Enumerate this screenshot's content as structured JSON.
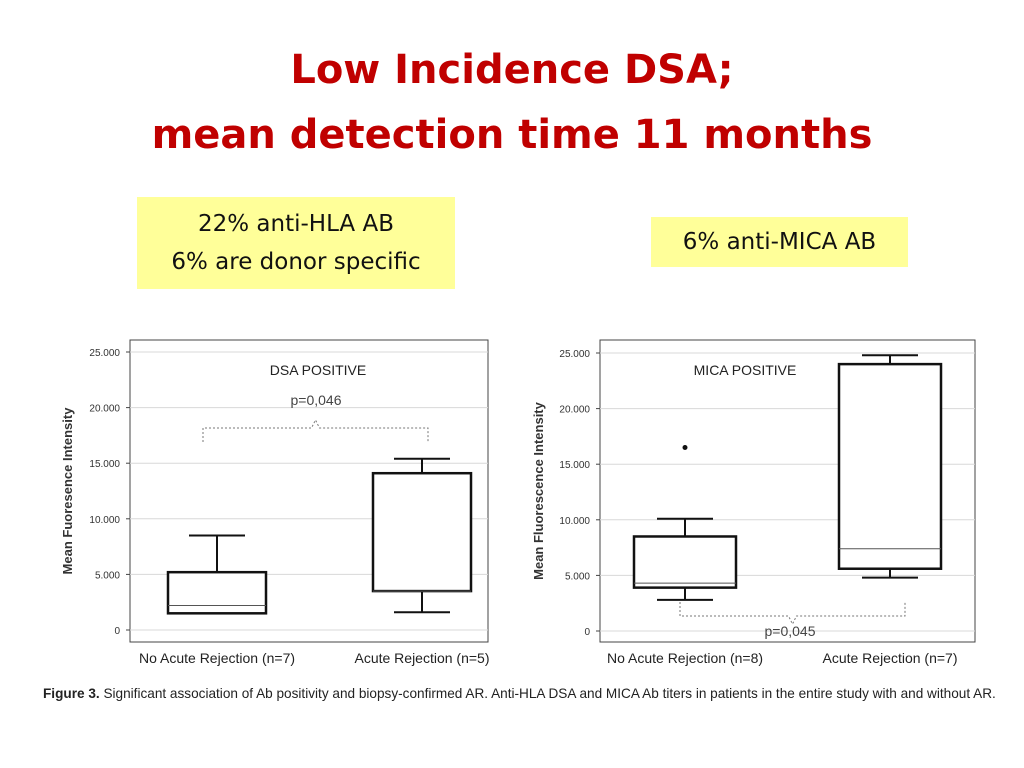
{
  "slide": {
    "title_line1": "Low Incidence DSA;",
    "title_line2": "mean detection time 11 months",
    "callout_left_line1": "22% anti-HLA AB",
    "callout_left_line2": "6% are donor specific",
    "callout_right": "6% anti-MICA AB",
    "caption_label": "Figure 3.",
    "caption_text": "Significant association of Ab positivity and biopsy-confirmed AR. Anti-HLA DSA and MICA Ab titers in patients in the entire study with and without AR."
  },
  "chart_data": [
    {
      "type": "boxplot",
      "title": "DSA POSITIVE",
      "ylabel": "Mean Fuoresence Intensity",
      "ylim": [
        0,
        25000
      ],
      "yticks": [
        "0",
        "5.000",
        "10.000",
        "15.000",
        "20.000",
        "25.000"
      ],
      "categories": [
        "No Acute Rejection (n=7)",
        "Acute Rejection (n=5)"
      ],
      "boxes": [
        {
          "min": 1500,
          "q1": 1500,
          "median": 2200,
          "q3": 5200,
          "max": 8500,
          "outliers": []
        },
        {
          "min": 1600,
          "q1": 3500,
          "median": 3500,
          "q3": 14100,
          "max": 15400,
          "outliers": []
        }
      ],
      "annotation": "p=0,046",
      "grid": true
    },
    {
      "type": "boxplot",
      "title": "MICA POSITIVE",
      "ylabel": "Mean Fluorescence Intensity",
      "ylim": [
        0,
        25000
      ],
      "yticks": [
        "0",
        "5.000",
        "10.000",
        "15.000",
        "20.000",
        "25.000"
      ],
      "categories": [
        "No Acute Rejection (n=8)",
        "Acute Rejection (n=7)"
      ],
      "boxes": [
        {
          "min": 2800,
          "q1": 3900,
          "median": 4300,
          "q3": 8500,
          "max": 10100,
          "outliers": [
            16500
          ]
        },
        {
          "min": 4800,
          "q1": 5600,
          "median": 7400,
          "q3": 24000,
          "max": 24800,
          "outliers": []
        }
      ],
      "annotation": "p=0,045",
      "grid": true
    }
  ]
}
